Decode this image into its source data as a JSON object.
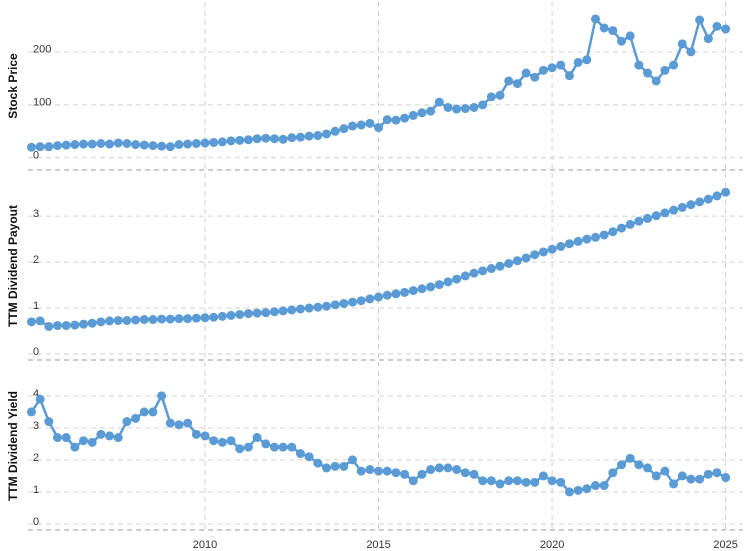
{
  "chart_data": [
    {
      "type": "line",
      "ylabel": "Stock Price",
      "color": "#5b9bd5",
      "xlim": [
        2004.9,
        2025.5
      ],
      "ylim": [
        -23,
        294
      ],
      "yticks": [
        0,
        100,
        200
      ],
      "grid": true,
      "x": [
        2005,
        2005.25,
        2005.5,
        2005.75,
        2006,
        2006.25,
        2006.5,
        2006.75,
        2007,
        2007.25,
        2007.5,
        2007.75,
        2008,
        2008.25,
        2008.5,
        2008.75,
        2009,
        2009.25,
        2009.5,
        2009.75,
        2010,
        2010.25,
        2010.5,
        2010.75,
        2011,
        2011.25,
        2011.5,
        2011.75,
        2012,
        2012.25,
        2012.5,
        2012.75,
        2013,
        2013.25,
        2013.5,
        2013.75,
        2014,
        2014.25,
        2014.5,
        2014.75,
        2015,
        2015.25,
        2015.5,
        2015.75,
        2016,
        2016.25,
        2016.5,
        2016.75,
        2017,
        2017.25,
        2017.5,
        2017.75,
        2018,
        2018.25,
        2018.5,
        2018.75,
        2019,
        2019.25,
        2019.5,
        2019.75,
        2020,
        2020.25,
        2020.5,
        2020.75,
        2021,
        2021.25,
        2021.5,
        2021.75,
        2022,
        2022.25,
        2022.5,
        2022.75,
        2023,
        2023.25,
        2023.5,
        2023.75,
        2024,
        2024.25,
        2024.5,
        2024.75,
        2025
      ],
      "values": [
        20,
        21,
        21,
        23,
        24,
        25,
        26,
        26,
        27,
        26,
        28,
        27,
        25,
        24,
        23,
        22,
        21,
        25,
        26,
        27,
        28,
        29,
        30,
        32,
        33,
        34,
        36,
        37,
        36,
        35,
        38,
        39,
        41,
        42,
        45,
        50,
        55,
        60,
        62,
        65,
        57,
        72,
        71,
        75,
        80,
        85,
        88,
        105,
        95,
        92,
        93,
        95,
        100,
        115,
        118,
        145,
        140,
        160,
        152,
        165,
        170,
        175,
        155,
        180,
        185,
        262,
        245,
        240,
        220,
        230,
        175,
        160,
        145,
        165,
        175,
        215,
        200,
        260,
        225,
        248,
        243
      ]
    },
    {
      "type": "line",
      "ylabel": "TTM Dividend Payout",
      "color": "#5b9bd5",
      "xlim": [
        2004.9,
        2025.5
      ],
      "ylim": [
        -0.13,
        3.96
      ],
      "yticks": [
        0,
        1,
        2,
        3
      ],
      "grid": true,
      "x": [
        2005,
        2005.25,
        2005.5,
        2005.75,
        2006,
        2006.25,
        2006.5,
        2006.75,
        2007,
        2007.25,
        2007.5,
        2007.75,
        2008,
        2008.25,
        2008.5,
        2008.75,
        2009,
        2009.25,
        2009.5,
        2009.75,
        2010,
        2010.25,
        2010.5,
        2010.75,
        2011,
        2011.25,
        2011.5,
        2011.75,
        2012,
        2012.25,
        2012.5,
        2012.75,
        2013,
        2013.25,
        2013.5,
        2013.75,
        2014,
        2014.25,
        2014.5,
        2014.75,
        2015,
        2015.25,
        2015.5,
        2015.75,
        2016,
        2016.25,
        2016.5,
        2016.75,
        2017,
        2017.25,
        2017.5,
        2017.75,
        2018,
        2018.25,
        2018.5,
        2018.75,
        2019,
        2019.25,
        2019.5,
        2019.75,
        2020,
        2020.25,
        2020.5,
        2020.75,
        2021,
        2021.25,
        2021.5,
        2021.75,
        2022,
        2022.25,
        2022.5,
        2022.75,
        2023,
        2023.25,
        2023.5,
        2023.75,
        2024,
        2024.25,
        2024.5,
        2024.75,
        2025
      ],
      "values": [
        0.7,
        0.72,
        0.6,
        0.62,
        0.62,
        0.63,
        0.65,
        0.67,
        0.7,
        0.72,
        0.73,
        0.73,
        0.74,
        0.75,
        0.75,
        0.76,
        0.76,
        0.77,
        0.77,
        0.78,
        0.79,
        0.8,
        0.82,
        0.84,
        0.86,
        0.88,
        0.89,
        0.9,
        0.92,
        0.94,
        0.96,
        0.98,
        1.0,
        1.02,
        1.04,
        1.07,
        1.1,
        1.13,
        1.16,
        1.2,
        1.24,
        1.28,
        1.31,
        1.34,
        1.38,
        1.42,
        1.46,
        1.51,
        1.57,
        1.63,
        1.7,
        1.76,
        1.81,
        1.86,
        1.91,
        1.97,
        2.03,
        2.09,
        2.16,
        2.22,
        2.28,
        2.34,
        2.4,
        2.45,
        2.5,
        2.54,
        2.59,
        2.66,
        2.74,
        2.82,
        2.89,
        2.95,
        3.01,
        3.07,
        3.13,
        3.19,
        3.25,
        3.31,
        3.37,
        3.44,
        3.52
      ]
    },
    {
      "type": "line",
      "ylabel": "TTM Dividend Yield",
      "color": "#5b9bd5",
      "xlim": [
        2004.9,
        2025.5
      ],
      "ylim": [
        -0.19,
        5.06
      ],
      "yticks": [
        0,
        1,
        2,
        3,
        4
      ],
      "xticks": [
        2010,
        2015,
        2020,
        2025
      ],
      "grid": true,
      "x": [
        2005,
        2005.25,
        2005.5,
        2005.75,
        2006,
        2006.25,
        2006.5,
        2006.75,
        2007,
        2007.25,
        2007.5,
        2007.75,
        2008,
        2008.25,
        2008.5,
        2008.75,
        2009,
        2009.25,
        2009.5,
        2009.75,
        2010,
        2010.25,
        2010.5,
        2010.75,
        2011,
        2011.25,
        2011.5,
        2011.75,
        2012,
        2012.25,
        2012.5,
        2012.75,
        2013,
        2013.25,
        2013.5,
        2013.75,
        2014,
        2014.25,
        2014.5,
        2014.75,
        2015,
        2015.25,
        2015.5,
        2015.75,
        2016,
        2016.25,
        2016.5,
        2016.75,
        2017,
        2017.25,
        2017.5,
        2017.75,
        2018,
        2018.25,
        2018.5,
        2018.75,
        2019,
        2019.25,
        2019.5,
        2019.75,
        2020,
        2020.25,
        2020.5,
        2020.75,
        2021,
        2021.25,
        2021.5,
        2021.75,
        2022,
        2022.25,
        2022.5,
        2022.75,
        2023,
        2023.25,
        2023.5,
        2023.75,
        2024,
        2024.25,
        2024.5,
        2024.75,
        2025
      ],
      "values": [
        3.5,
        3.9,
        3.2,
        2.7,
        2.7,
        2.4,
        2.6,
        2.55,
        2.8,
        2.75,
        2.7,
        3.2,
        3.3,
        3.5,
        3.5,
        4.0,
        3.15,
        3.1,
        3.15,
        2.8,
        2.75,
        2.6,
        2.55,
        2.6,
        2.35,
        2.4,
        2.7,
        2.5,
        2.4,
        2.4,
        2.4,
        2.2,
        2.1,
        1.9,
        1.75,
        1.8,
        1.8,
        2.0,
        1.65,
        1.7,
        1.65,
        1.65,
        1.6,
        1.55,
        1.35,
        1.55,
        1.7,
        1.75,
        1.75,
        1.7,
        1.6,
        1.55,
        1.35,
        1.35,
        1.25,
        1.35,
        1.35,
        1.3,
        1.3,
        1.5,
        1.35,
        1.3,
        1.0,
        1.05,
        1.1,
        1.2,
        1.2,
        1.6,
        1.85,
        2.05,
        1.85,
        1.75,
        1.5,
        1.65,
        1.25,
        1.5,
        1.4,
        1.4,
        1.55,
        1.6,
        1.45
      ]
    }
  ]
}
